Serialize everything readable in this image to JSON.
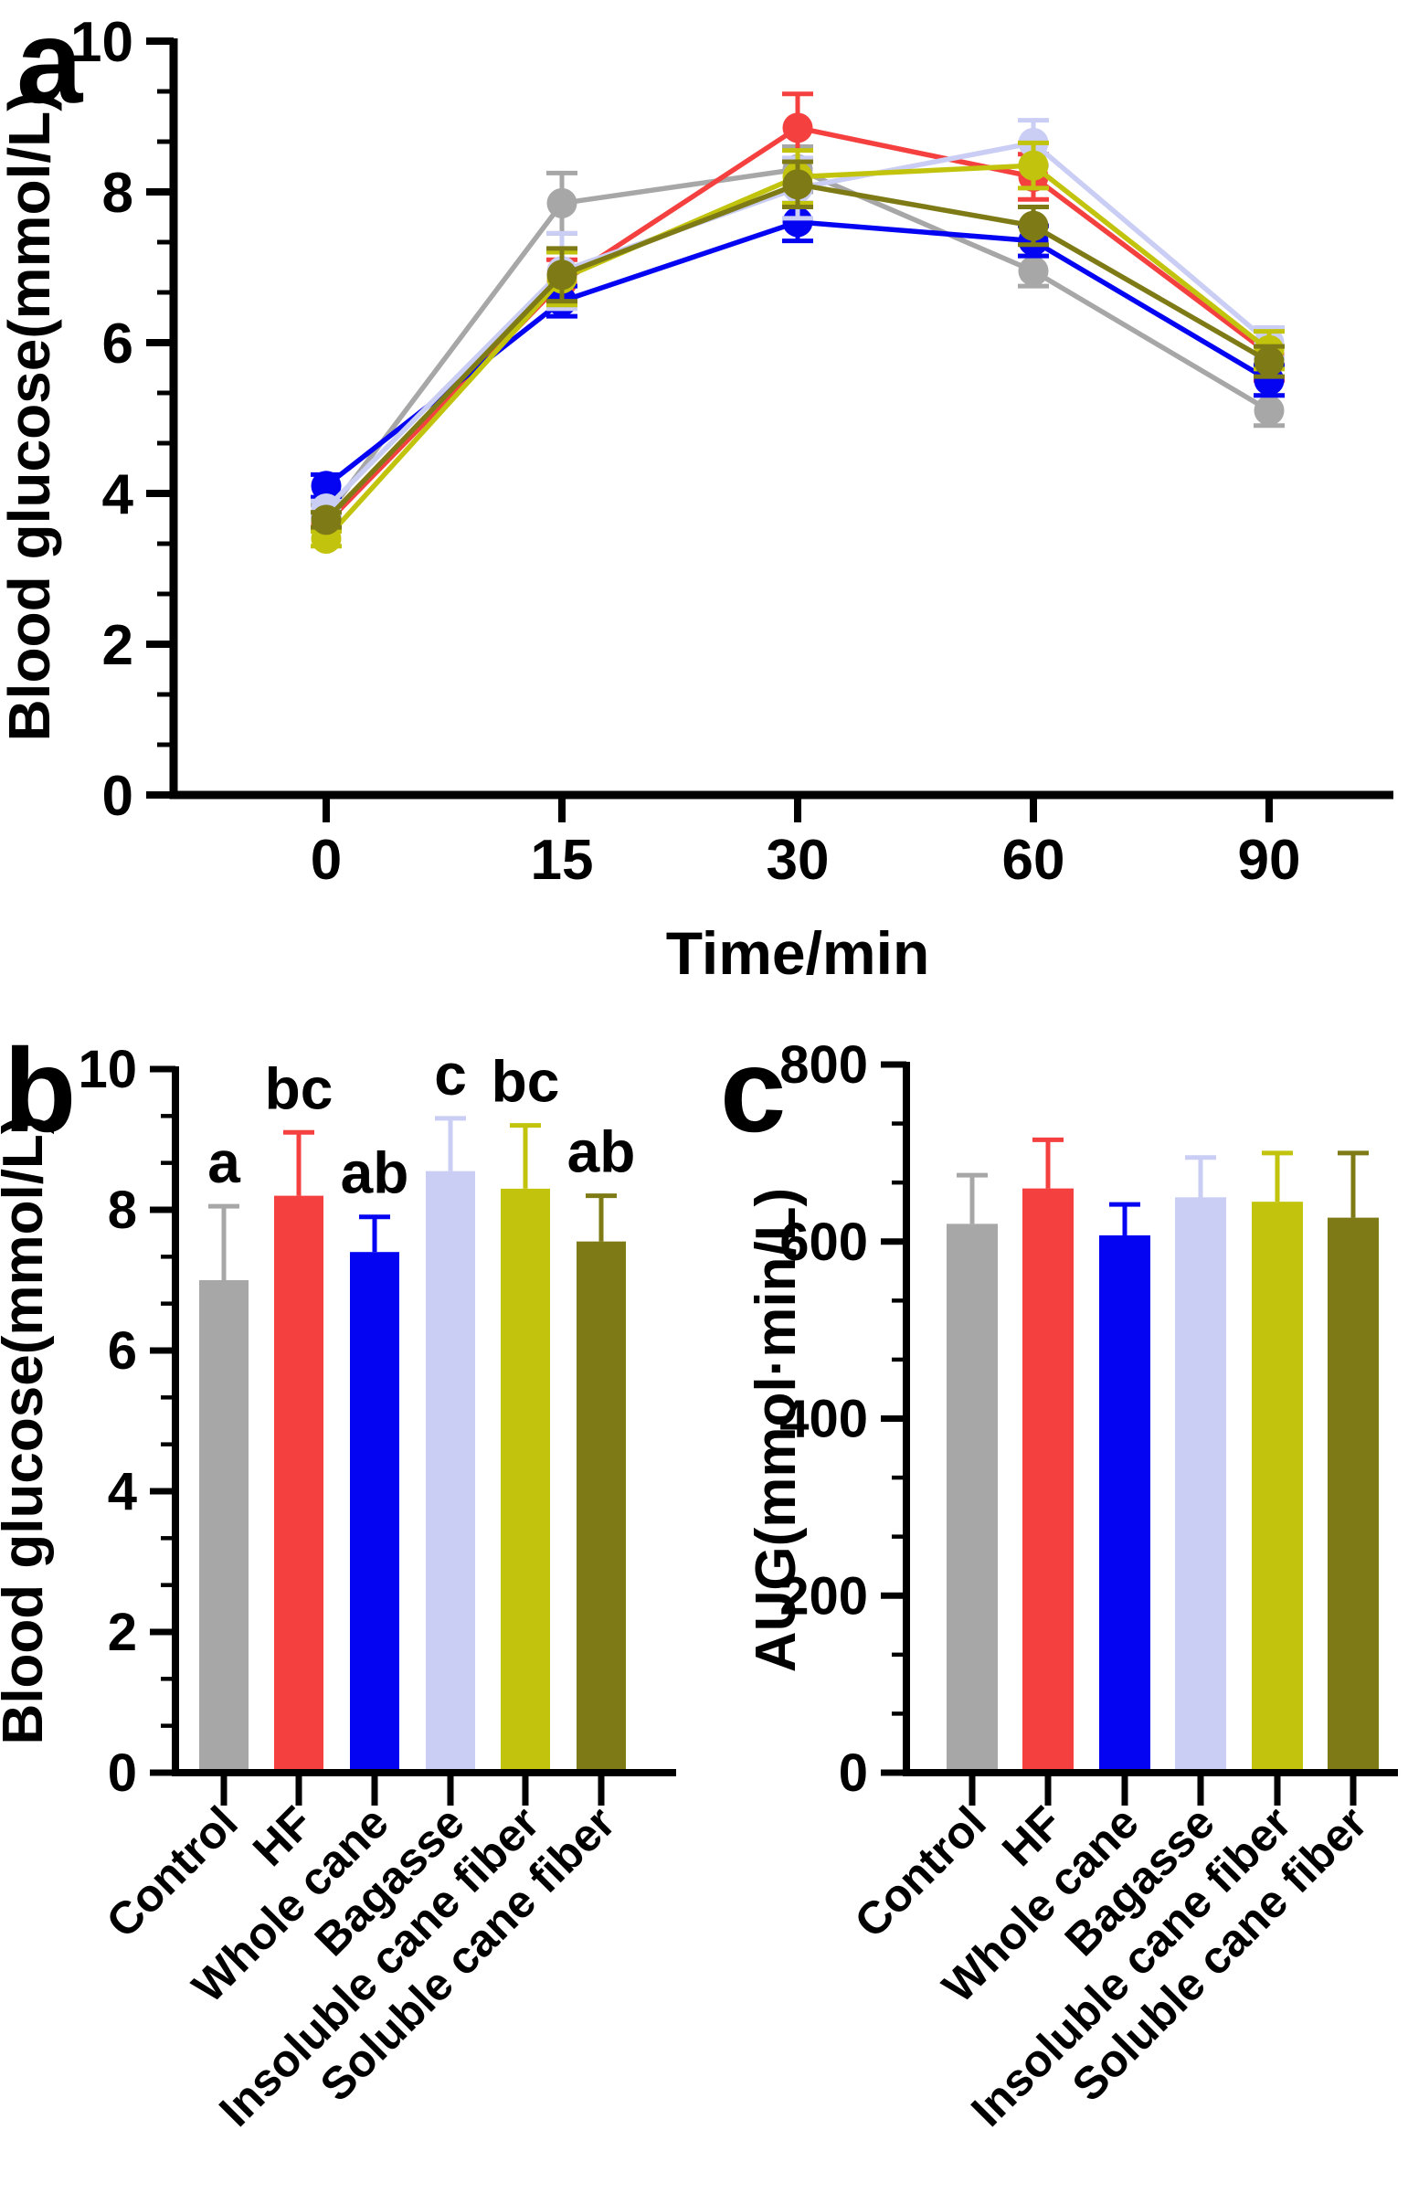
{
  "panels": {
    "a": {
      "label": "a"
    },
    "b": {
      "label": "b"
    },
    "c": {
      "label": "c"
    }
  },
  "chart_data": [
    {
      "panel": "a",
      "type": "line",
      "title": "",
      "xlabel": "Time/min",
      "ylabel": "Blood glucose(mmol/L)",
      "x_tick_labels": [
        "0",
        "15",
        "30",
        "60",
        "90"
      ],
      "x": [
        0,
        15,
        30,
        60,
        90
      ],
      "y_tick_labels": [
        "0",
        "2",
        "4",
        "6",
        "8",
        "10"
      ],
      "ylim": [
        0,
        10
      ],
      "grid": false,
      "legend": "none",
      "series": [
        {
          "name": "Control",
          "color": "#a7a7a7",
          "values": [
            3.7,
            7.85,
            8.3,
            6.95,
            5.1
          ],
          "errors": [
            0.15,
            0.4,
            0.3,
            0.2,
            0.2
          ]
        },
        {
          "name": "HF",
          "color": "#f54040",
          "values": [
            3.6,
            6.8,
            8.85,
            8.2,
            5.85
          ],
          "errors": [
            0.1,
            0.3,
            0.45,
            0.3,
            0.35
          ]
        },
        {
          "name": "Whole cane",
          "color": "#0404f2",
          "values": [
            4.1,
            6.55,
            7.6,
            7.35,
            5.5
          ],
          "errors": [
            0.15,
            0.2,
            0.25,
            0.2,
            0.2
          ]
        },
        {
          "name": "Bagasse",
          "color": "#cacdf4",
          "values": [
            3.8,
            6.95,
            8.05,
            8.65,
            6.0
          ],
          "errors": [
            0.1,
            0.5,
            0.4,
            0.3,
            0.2
          ]
        },
        {
          "name": "Insoluble cane fiber",
          "color": "#c2c30d",
          "values": [
            3.4,
            6.85,
            8.2,
            8.35,
            5.9
          ],
          "errors": [
            0.1,
            0.35,
            0.35,
            0.3,
            0.25
          ]
        },
        {
          "name": "Soluble cane fiber",
          "color": "#7e7b16",
          "values": [
            3.65,
            6.9,
            8.1,
            7.55,
            5.75
          ],
          "errors": [
            0.1,
            0.35,
            0.3,
            0.25,
            0.2
          ]
        }
      ]
    },
    {
      "panel": "b",
      "type": "bar",
      "title": "",
      "xlabel": "",
      "ylabel": "Blood glucose(mmol/L)",
      "y_tick_labels": [
        "0",
        "2",
        "4",
        "6",
        "8",
        "10"
      ],
      "ylim": [
        0,
        10
      ],
      "grid": false,
      "legend": "none",
      "categories": [
        "Control",
        "HF",
        "Whole cane",
        "Bagasse",
        "Insoluble cane fiber",
        "Soluble cane fiber"
      ],
      "bars": [
        {
          "label": "Control",
          "color": "#a7a7a7",
          "value": 7.0,
          "error": 1.05,
          "sig": "a"
        },
        {
          "label": "HF",
          "color": "#f54040",
          "value": 8.2,
          "error": 0.9,
          "sig": "bc"
        },
        {
          "label": "Whole cane",
          "color": "#0404f2",
          "value": 7.4,
          "error": 0.5,
          "sig": "ab"
        },
        {
          "label": "Bagasse",
          "color": "#cacdf4",
          "value": 8.55,
          "error": 0.75,
          "sig": "c"
        },
        {
          "label": "Insoluble cane fiber",
          "color": "#c2c30d",
          "value": 8.3,
          "error": 0.9,
          "sig": "bc"
        },
        {
          "label": "Soluble cane fiber",
          "color": "#7e7b16",
          "value": 7.55,
          "error": 0.65,
          "sig": "ab"
        }
      ]
    },
    {
      "panel": "c",
      "type": "bar",
      "title": "",
      "xlabel": "",
      "ylabel": "AUG(mmol·min/L)",
      "y_tick_labels": [
        "0",
        "200",
        "400",
        "600",
        "800"
      ],
      "ylim": [
        0,
        800
      ],
      "grid": false,
      "legend": "none",
      "categories": [
        "Control",
        "HF",
        "Whole cane",
        "Bagasse",
        "Insoluble cane fiber",
        "Soluble cane fiber"
      ],
      "bars": [
        {
          "label": "Control",
          "color": "#a7a7a7",
          "value": 620,
          "error": 55,
          "sig": ""
        },
        {
          "label": "HF",
          "color": "#f54040",
          "value": 660,
          "error": 55,
          "sig": ""
        },
        {
          "label": "Whole cane",
          "color": "#0404f2",
          "value": 607,
          "error": 35,
          "sig": ""
        },
        {
          "label": "Bagasse",
          "color": "#cacdf4",
          "value": 650,
          "error": 45,
          "sig": ""
        },
        {
          "label": "Insoluble cane fiber",
          "color": "#c2c30d",
          "value": 645,
          "error": 55,
          "sig": ""
        },
        {
          "label": "Soluble cane fiber",
          "color": "#7e7b16",
          "value": 627,
          "error": 73,
          "sig": ""
        }
      ]
    }
  ]
}
